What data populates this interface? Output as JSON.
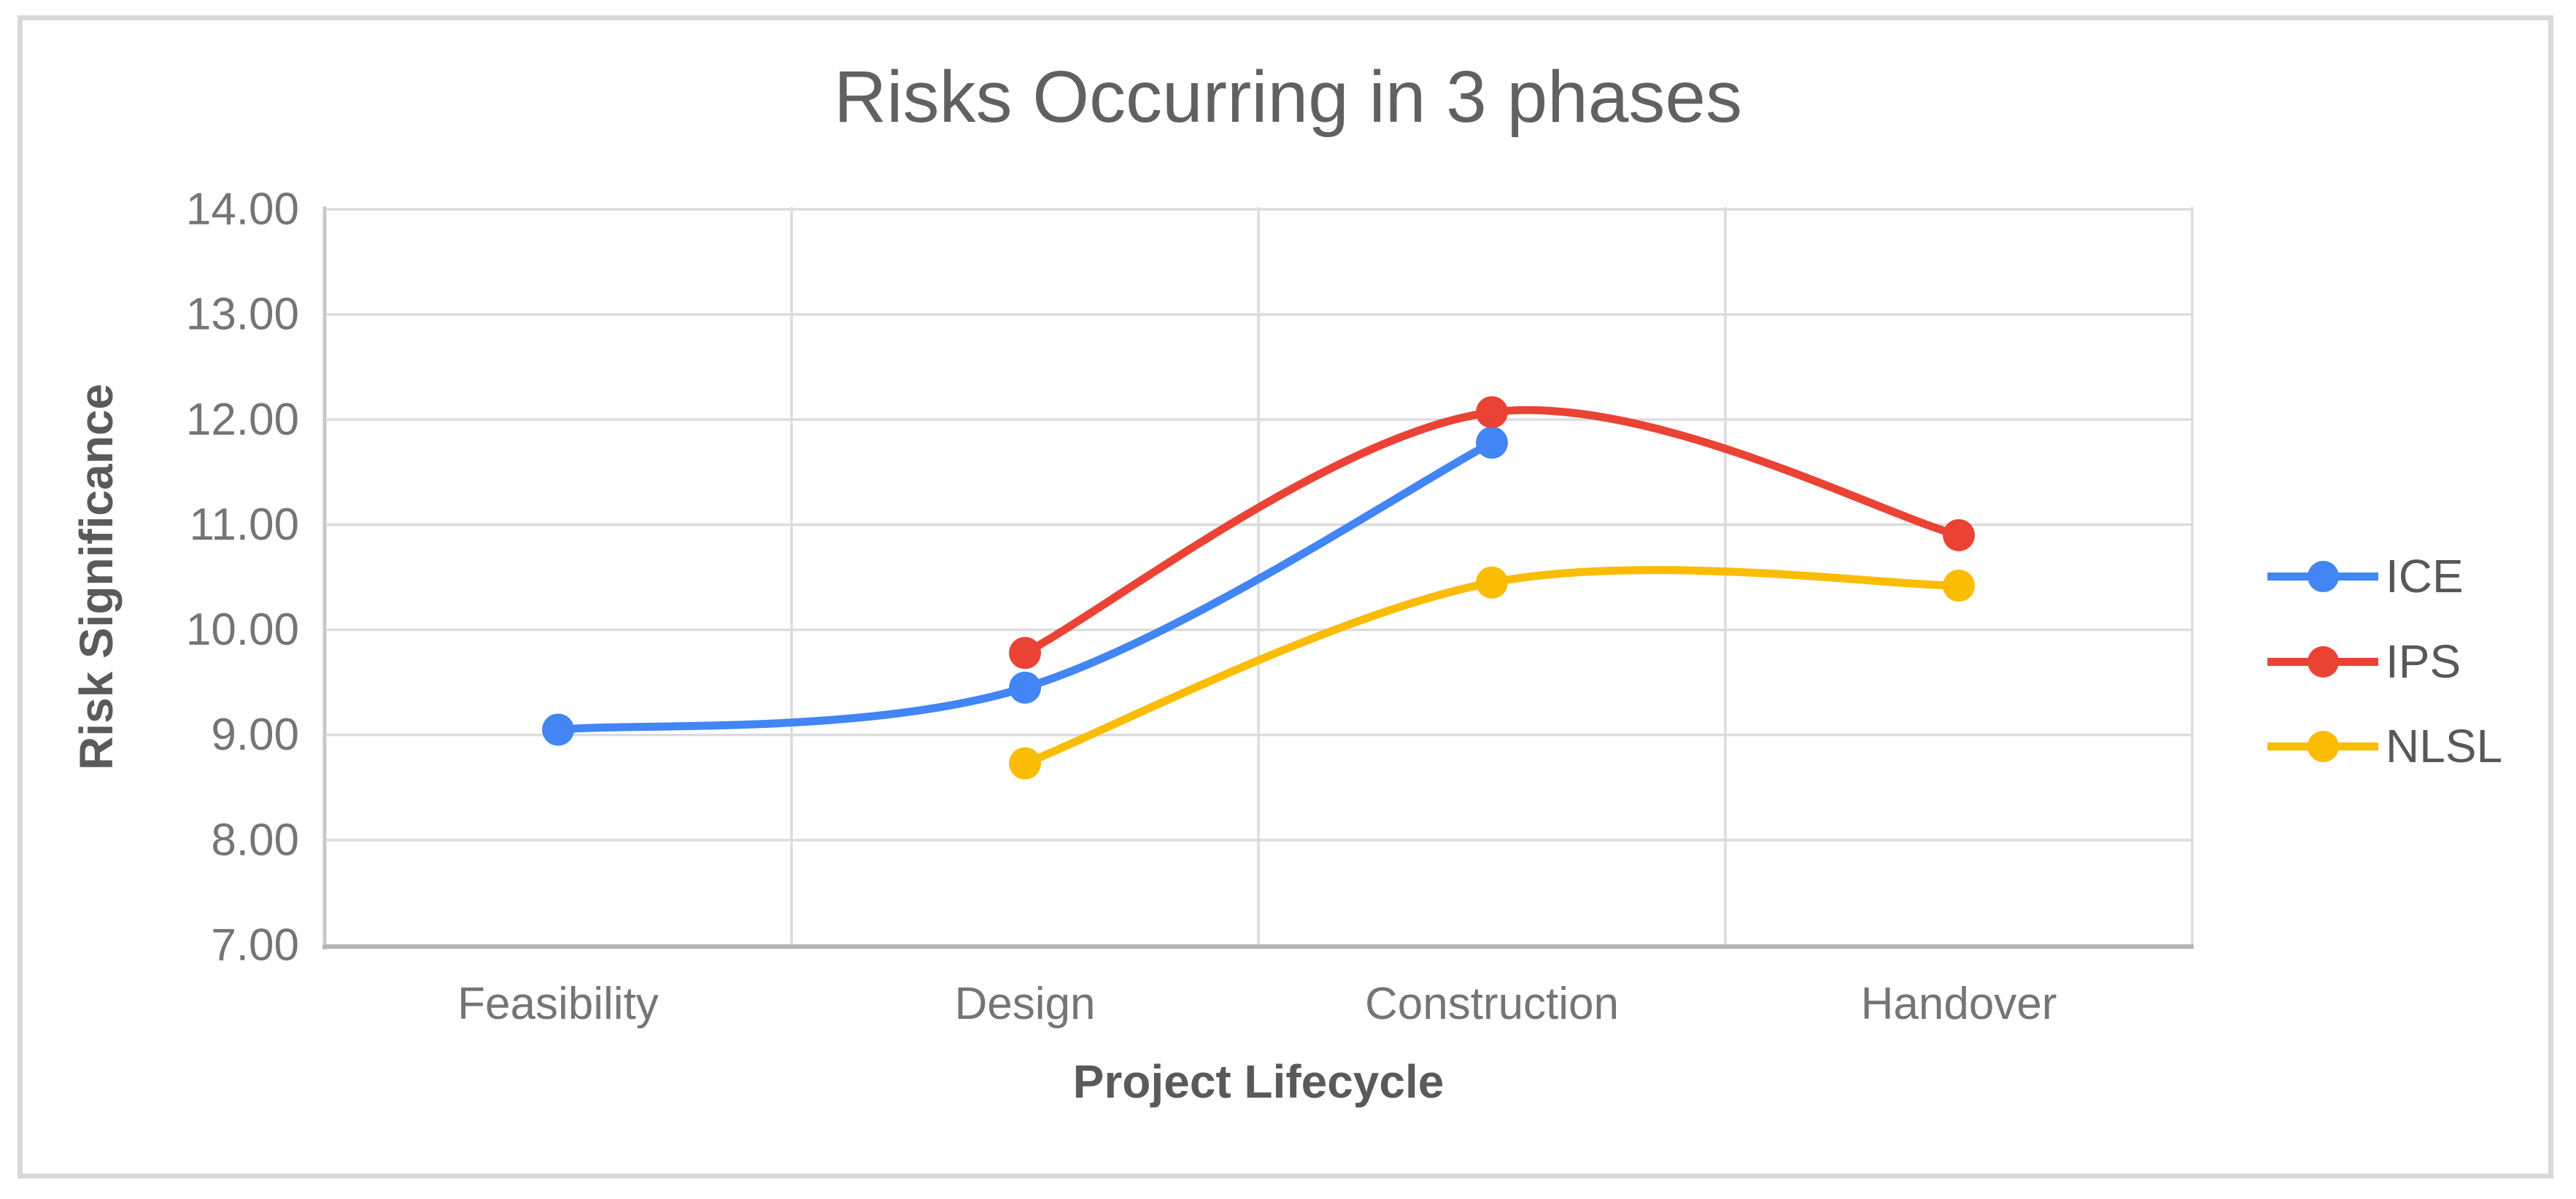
{
  "window": {
    "background": "#ffffff",
    "border_color": "#d9d9d9"
  },
  "chart_data": {
    "type": "line",
    "title": "Risks Occurring in 3 phases",
    "xlabel": "Project Lifecycle",
    "ylabel": "Risk Significance",
    "categories": [
      "Feasibility",
      "Design",
      "Construction",
      "Handover"
    ],
    "series": [
      {
        "name": "ICE",
        "color": "#4285F4",
        "values": [
          9.05,
          9.45,
          11.78,
          null
        ]
      },
      {
        "name": "IPS",
        "color": "#EA4335",
        "values": [
          null,
          9.78,
          12.07,
          10.9
        ]
      },
      {
        "name": "NLSL",
        "color": "#FBBC04",
        "values": [
          null,
          8.73,
          10.45,
          10.42
        ]
      }
    ],
    "ylim": [
      7,
      14
    ],
    "ytick_step": 1,
    "yticks": [
      "7.00",
      "8.00",
      "9.00",
      "10.00",
      "11.00",
      "12.00",
      "13.00",
      "14.00"
    ],
    "line_style": "smooth",
    "grid": true,
    "legend_position": "right",
    "colors": {
      "gridline": "#dcdcdc",
      "y_axis_line": "#c9c9c9",
      "x_axis_line": "#b5b5b5",
      "tick_label": "#757575",
      "title": "#616161",
      "axis_title": "#5a5a5a",
      "legend_label": "#58585a"
    }
  }
}
